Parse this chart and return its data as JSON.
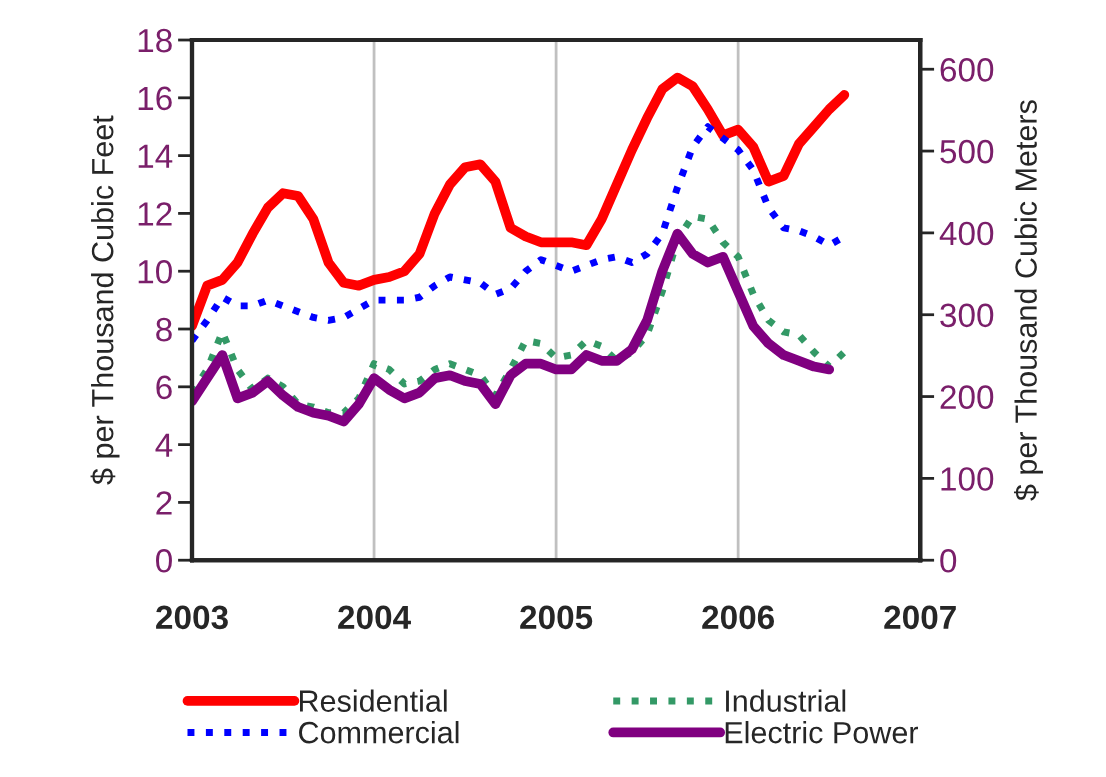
{
  "chart_data": {
    "type": "line",
    "ylabel": "$ per Thousand Cubic Feet",
    "y2label": "$ per Thousand Cubic Meters",
    "x": [
      "2003-01",
      "2003-02",
      "2003-03",
      "2003-04",
      "2003-05",
      "2003-06",
      "2003-07",
      "2003-08",
      "2003-09",
      "2003-10",
      "2003-11",
      "2003-12",
      "2004-01",
      "2004-02",
      "2004-03",
      "2004-04",
      "2004-05",
      "2004-06",
      "2004-07",
      "2004-08",
      "2004-09",
      "2004-10",
      "2004-11",
      "2004-12",
      "2005-01",
      "2005-02",
      "2005-03",
      "2005-04",
      "2005-05",
      "2005-06",
      "2005-07",
      "2005-08",
      "2005-09",
      "2005-10",
      "2005-11",
      "2005-12",
      "2006-01",
      "2006-02",
      "2006-03",
      "2006-04",
      "2006-05",
      "2006-06",
      "2006-07",
      "2006-08"
    ],
    "series": [
      {
        "name": "Residential",
        "color": "#ff0000",
        "line_style": "solid",
        "values": [
          8.1,
          9.5,
          9.7,
          10.3,
          11.3,
          12.2,
          12.7,
          12.6,
          11.8,
          10.3,
          9.6,
          9.5,
          9.7,
          9.8,
          10.0,
          10.6,
          12.0,
          13.0,
          13.6,
          13.7,
          13.1,
          11.5,
          11.2,
          11.0,
          11.0,
          11.0,
          10.9,
          11.8,
          13.0,
          14.2,
          15.3,
          16.3,
          16.7,
          16.4,
          15.6,
          14.7,
          14.9,
          14.3,
          13.1,
          13.3,
          14.4,
          15.0,
          15.6,
          16.1
        ]
      },
      {
        "name": "Commercial",
        "color": "#0000ff",
        "line_style": "dotted",
        "values": [
          7.6,
          8.3,
          9.1,
          8.8,
          8.8,
          9.0,
          8.8,
          8.6,
          8.4,
          8.3,
          8.4,
          8.7,
          9.0,
          9.0,
          9.0,
          9.1,
          9.5,
          9.8,
          9.7,
          9.6,
          9.2,
          9.4,
          10.0,
          10.4,
          10.2,
          10.0,
          10.2,
          10.4,
          10.5,
          10.3,
          10.6,
          11.3,
          12.9,
          14.3,
          15.0,
          14.6,
          14.2,
          13.5,
          12.2,
          11.5,
          11.4,
          11.2,
          10.9,
          11.2
        ]
      },
      {
        "name": "Industrial",
        "color": "#339966",
        "line_style": "dotted",
        "values": [
          5.8,
          6.6,
          7.9,
          6.6,
          5.9,
          6.3,
          6.0,
          5.4,
          5.3,
          5.1,
          5.1,
          5.6,
          6.8,
          6.6,
          6.1,
          6.2,
          6.6,
          6.8,
          6.6,
          6.4,
          5.7,
          6.6,
          7.6,
          7.5,
          7.0,
          7.1,
          7.6,
          7.4,
          6.9,
          7.2,
          7.8,
          9.3,
          11.1,
          11.9,
          11.8,
          11.0,
          10.5,
          9.2,
          8.3,
          7.9,
          7.8,
          7.2,
          6.7,
          7.2
        ]
      },
      {
        "name": "Electric Power",
        "color": "#800080",
        "line_style": "solid",
        "values": [
          5.5,
          6.3,
          7.1,
          5.6,
          5.8,
          6.2,
          5.7,
          5.3,
          5.1,
          5.0,
          4.8,
          5.4,
          6.3,
          5.9,
          5.6,
          5.8,
          6.3,
          6.4,
          6.2,
          6.1,
          5.4,
          6.4,
          6.8,
          6.8,
          6.6,
          6.6,
          7.1,
          6.9,
          6.9,
          7.3,
          8.3,
          10.0,
          11.3,
          10.6,
          10.3,
          10.5,
          9.3,
          8.1,
          7.5,
          7.1,
          6.9,
          6.7,
          6.6,
          null
        ]
      }
    ],
    "xlim": [
      "2003-01",
      "2007-01"
    ],
    "xticks": [
      {
        "value": "2003-01",
        "label": "2003"
      },
      {
        "value": "2004-01",
        "label": "2004"
      },
      {
        "value": "2005-01",
        "label": "2005"
      },
      {
        "value": "2006-01",
        "label": "2006"
      },
      {
        "value": "2007-01",
        "label": "2007"
      }
    ],
    "ylim": [
      0,
      18
    ],
    "yticks": [
      0,
      2,
      4,
      6,
      8,
      10,
      12,
      14,
      16,
      18
    ],
    "y2lim": [
      0,
      635.7
    ],
    "y2ticks": [
      0,
      100,
      200,
      300,
      400,
      500,
      600
    ],
    "grid": "x",
    "legend": "bottom"
  }
}
